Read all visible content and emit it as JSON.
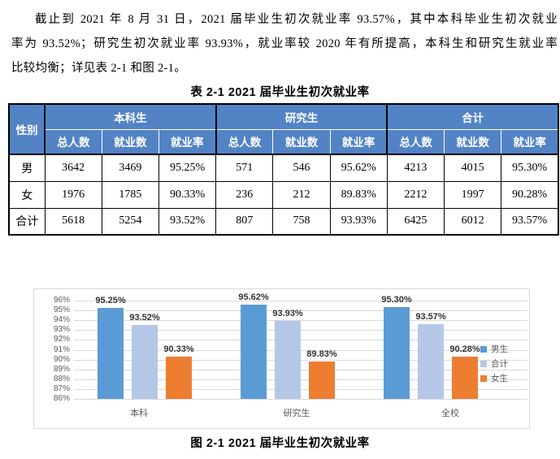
{
  "paragraph": {
    "lines": [
      "截止到 2021 年 8 月 31 日，2021 届毕业生初次就业率 93.57%，其中本科毕业生初次就业",
      "率为 93.52%；研究生初次就业率 93.93%，就业率较 2020 年有所提高，本科生和研究生就业率",
      "比较均衡；详见表 2-1 和图 2-1。"
    ]
  },
  "table": {
    "title": "表 2-1 2021 届毕业生初次就业率",
    "corner_header": "性别",
    "groups": [
      "本科生",
      "研究生",
      "合计"
    ],
    "sub_headers": [
      "总人数",
      "就业数",
      "就业率"
    ],
    "rows": [
      {
        "label": "男",
        "cells": [
          "3642",
          "3469",
          "95.25%",
          "571",
          "546",
          "95.62%",
          "4213",
          "4015",
          "95.30%"
        ]
      },
      {
        "label": "女",
        "cells": [
          "1976",
          "1785",
          "90.33%",
          "236",
          "212",
          "89.83%",
          "2212",
          "1997",
          "90.28%"
        ]
      },
      {
        "label": "合计",
        "cells": [
          "5618",
          "5254",
          "93.52%",
          "807",
          "758",
          "93.93%",
          "6425",
          "6012",
          "93.57%"
        ]
      }
    ],
    "header_bg": "#5283C5",
    "header_text_color": "#FFFFFF"
  },
  "chart_data": {
    "type": "bar",
    "title": "图 2-1 2021 届毕业生初次就业率",
    "categories": [
      "本科",
      "研究生",
      "全校"
    ],
    "series": [
      {
        "name": "男生",
        "color": "#5B9BD5",
        "values": [
          95.25,
          95.62,
          95.3
        ]
      },
      {
        "name": "合计",
        "color": "#B4C7E7",
        "values": [
          93.52,
          93.93,
          93.57
        ]
      },
      {
        "name": "女生",
        "color": "#ED7D31",
        "values": [
          90.33,
          89.83,
          90.28
        ]
      }
    ],
    "data_labels": [
      [
        "95.25%",
        "93.52%",
        "90.33%"
      ],
      [
        "95.62%",
        "93.93%",
        "89.83%"
      ],
      [
        "95.30%",
        "93.57%",
        "90.28%"
      ]
    ],
    "ylim": [
      86,
      96
    ],
    "ytick_labels": [
      "96%",
      "95%",
      "94%",
      "93%",
      "92%",
      "91%",
      "90%",
      "89%",
      "88%",
      "87%",
      "86%"
    ],
    "xlabel": "",
    "ylabel": "",
    "grid": true,
    "legend_position": "right",
    "grid_color": "#D9D9D9",
    "axis_text_color": "#595959"
  }
}
